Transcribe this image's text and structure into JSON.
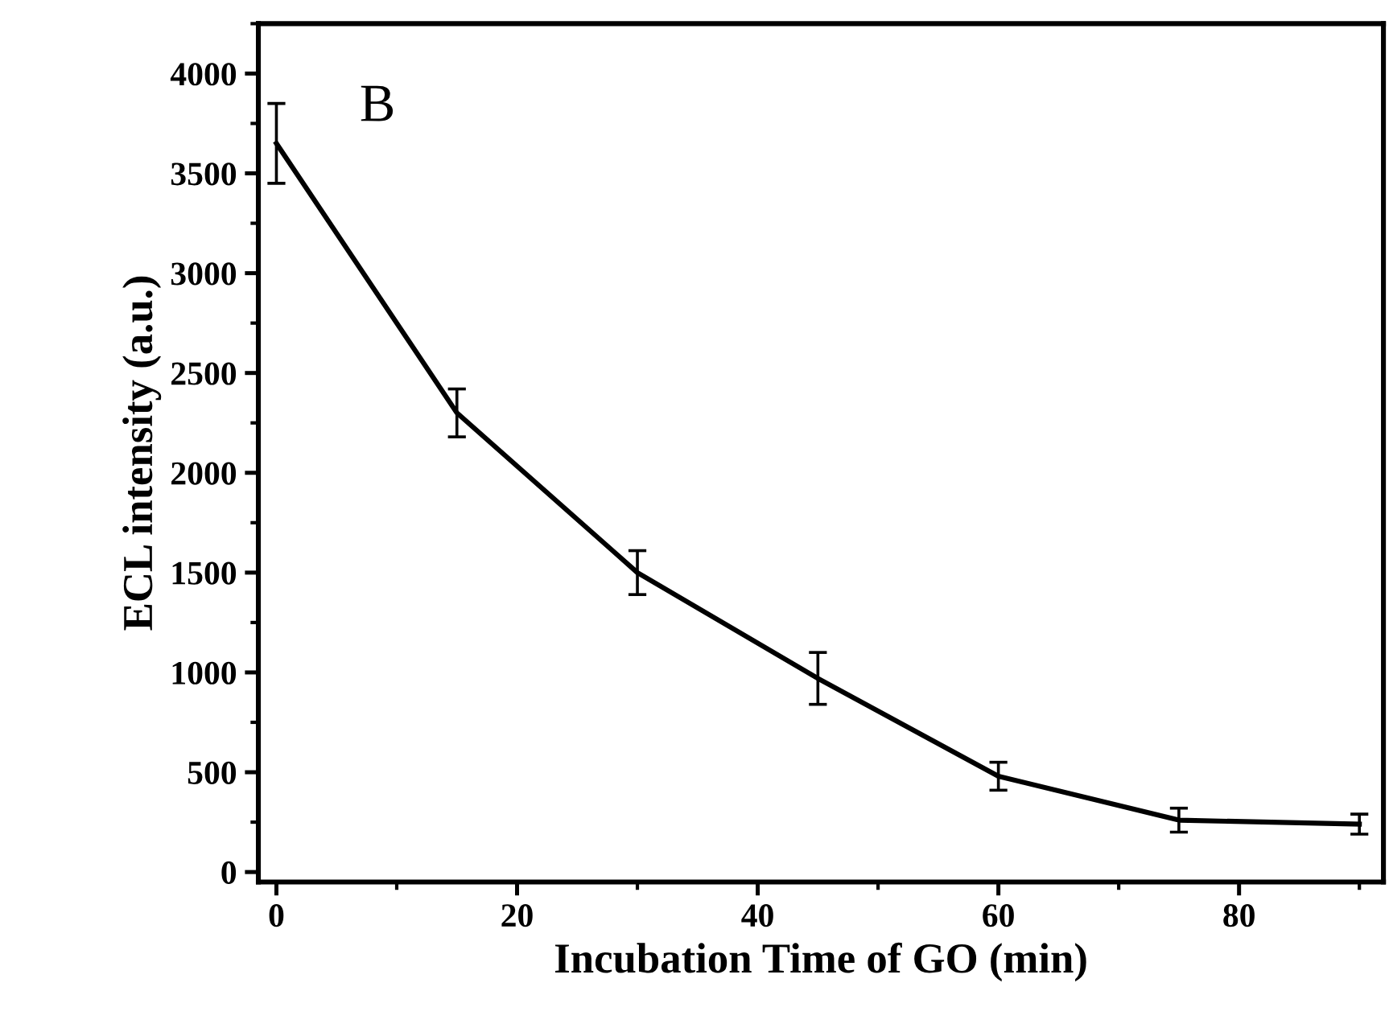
{
  "chart_data": {
    "type": "line",
    "xlabel": "Incubation Time of GO (min)",
    "ylabel": "ECL intensity (a.u.)",
    "annotations": [
      "B"
    ],
    "x": [
      0,
      15,
      30,
      45,
      60,
      75,
      90
    ],
    "series": [
      {
        "color": "#000000",
        "values": [
          3650,
          2300,
          1500,
          970,
          480,
          260,
          240
        ],
        "errors": [
          200,
          120,
          110,
          130,
          70,
          60,
          50
        ]
      }
    ],
    "xlim": [
      -1.5,
      92
    ],
    "xticks": [
      0,
      20,
      40,
      60,
      80
    ],
    "ylim": [
      -50,
      4250
    ],
    "yticks": [
      0,
      500,
      1000,
      1500,
      2000,
      2500,
      3000,
      3500,
      4000
    ],
    "grid": false,
    "legend": false,
    "marker": "none",
    "line_style": "solid"
  }
}
